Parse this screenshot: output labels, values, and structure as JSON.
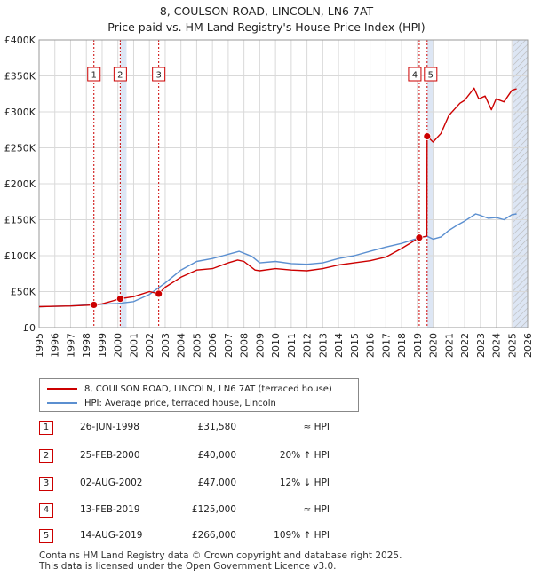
{
  "title_line1": "8, COULSON ROAD, LINCOLN, LN6 7AT",
  "title_line2": "Price paid vs. HM Land Registry's House Price Index (HPI)",
  "legend": {
    "property_label": "8, COULSON ROAD, LINCOLN, LN6 7AT (terraced house)",
    "hpi_label": "HPI: Average price, terraced house, Lincoln"
  },
  "colors": {
    "property": "#cc0000",
    "hpi": "#5b8fd0",
    "shade": "#dde6f4",
    "grid": "#d9d9d9"
  },
  "sales": [
    {
      "num": "1",
      "date": "26-JUN-1998",
      "price": "£31,580",
      "rel": "≈ HPI"
    },
    {
      "num": "2",
      "date": "25-FEB-2000",
      "price": "£40,000",
      "rel": "20% ↑ HPI"
    },
    {
      "num": "3",
      "date": "02-AUG-2002",
      "price": "£47,000",
      "rel": "12% ↓ HPI"
    },
    {
      "num": "4",
      "date": "13-FEB-2019",
      "price": "£125,000",
      "rel": "≈ HPI"
    },
    {
      "num": "5",
      "date": "14-AUG-2019",
      "price": "£266,000",
      "rel": "109% ↑ HPI"
    }
  ],
  "footer": {
    "line1": "Contains HM Land Registry data © Crown copyright and database right 2025.",
    "line2": "This data is licensed under the Open Government Licence v3.0."
  },
  "chart_data": {
    "type": "line",
    "title": "8, COULSON ROAD, LINCOLN, LN6 7AT",
    "subtitle": "Price paid vs. HM Land Registry's House Price Index (HPI)",
    "xlabel": "",
    "ylabel": "",
    "xlim": [
      1995,
      2026
    ],
    "ylim": [
      0,
      400000
    ],
    "grid": true,
    "legend_position": "below",
    "yticks": [
      0,
      50000,
      100000,
      150000,
      200000,
      250000,
      300000,
      350000,
      400000
    ],
    "ytick_labels": [
      "£0",
      "£50K",
      "£100K",
      "£150K",
      "£200K",
      "£250K",
      "£300K",
      "£350K",
      "£400K"
    ],
    "xticks": [
      1995,
      1996,
      1997,
      1998,
      1999,
      2000,
      2001,
      2002,
      2003,
      2004,
      2005,
      2006,
      2007,
      2008,
      2009,
      2010,
      2011,
      2012,
      2013,
      2014,
      2015,
      2016,
      2017,
      2018,
      2019,
      2020,
      2021,
      2022,
      2023,
      2024,
      2025,
      2026
    ],
    "shaded_ranges": [
      [
        2000.15,
        2000.55
      ],
      [
        2019.62,
        2020.05
      ],
      [
        2025.1,
        2026
      ]
    ],
    "hatched_range": [
      2025.1,
      2026
    ],
    "sale_markers": [
      {
        "label": "1",
        "x": 1998.48,
        "y": 31580
      },
      {
        "label": "2",
        "x": 2000.15,
        "y": 40000
      },
      {
        "label": "3",
        "x": 2002.59,
        "y": 47000
      },
      {
        "label": "4",
        "x": 2019.12,
        "y": 125000
      },
      {
        "label": "5",
        "x": 2019.62,
        "y": 266000
      }
    ],
    "series": [
      {
        "name": "8, COULSON ROAD, LINCOLN, LN6 7AT (terraced house)",
        "color": "#cc0000",
        "x": [
          1995,
          1996,
          1997,
          1998,
          1998.48,
          1999,
          2000.15,
          2001,
          2002,
          2002.59,
          2003,
          2004,
          2005,
          2006,
          2007,
          2007.6,
          2008,
          2008.7,
          2009,
          2010,
          2011,
          2012,
          2013,
          2014,
          2015,
          2016,
          2017,
          2018,
          2019.12,
          2019.6,
          2019.62,
          2020,
          2020.5,
          2021,
          2021.7,
          2022,
          2022.6,
          2022.9,
          2023.3,
          2023.7,
          2024,
          2024.5,
          2025,
          2025.3
        ],
        "y": [
          29000,
          29500,
          30000,
          31000,
          31580,
          33000,
          40000,
          43000,
          50000,
          47000,
          56000,
          70000,
          80000,
          82000,
          90000,
          94000,
          92000,
          80000,
          79000,
          82000,
          80000,
          79000,
          82000,
          87000,
          90000,
          93000,
          98000,
          110000,
          125000,
          127000,
          266000,
          258000,
          270000,
          295000,
          312000,
          316000,
          333000,
          318000,
          322000,
          303000,
          318000,
          314000,
          330000,
          332000
        ]
      },
      {
        "name": "HPI: Average price, terraced house, Lincoln",
        "color": "#5b8fd0",
        "x": [
          1995,
          1996,
          1997,
          1998,
          1999,
          2000,
          2001,
          2002,
          2003,
          2004,
          2005,
          2006,
          2007,
          2007.7,
          2008.5,
          2009,
          2010,
          2011,
          2012,
          2013,
          2014,
          2015,
          2016,
          2017,
          2018,
          2019,
          2019.6,
          2020,
          2020.5,
          2021,
          2021.5,
          2022,
          2022.7,
          2023,
          2023.5,
          2024,
          2024.5,
          2025,
          2025.3
        ],
        "y": [
          29000,
          29500,
          30000,
          31500,
          32500,
          33500,
          36000,
          46000,
          62000,
          80000,
          92000,
          96000,
          102000,
          106000,
          99000,
          90000,
          92000,
          89000,
          88000,
          90000,
          96000,
          100000,
          106000,
          112000,
          117000,
          124000,
          127000,
          123000,
          126000,
          135000,
          142000,
          148000,
          158000,
          156000,
          152000,
          153000,
          150000,
          157000,
          158000
        ]
      }
    ]
  }
}
